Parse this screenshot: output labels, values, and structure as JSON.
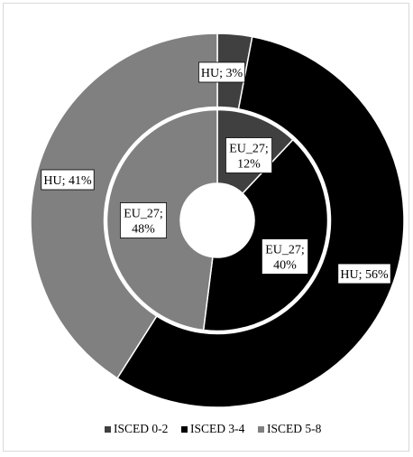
{
  "chart_data": {
    "type": "pie",
    "subtype": "doughnut",
    "categories": [
      "ISCED 0-2",
      "ISCED 3-4",
      "ISCED 5-8"
    ],
    "colors": [
      "#404040",
      "#000000",
      "#808080"
    ],
    "series": [
      {
        "name": "HU",
        "values": [
          3,
          56,
          41
        ],
        "ring": "outer"
      },
      {
        "name": "EU_27",
        "values": [
          12,
          40,
          48
        ],
        "ring": "inner"
      }
    ],
    "data_labels": {
      "outer": [
        "HU; 3%",
        "HU; 56%",
        "HU; 41%"
      ],
      "inner": [
        [
          "EU_27;",
          "12%"
        ],
        [
          "EU_27;",
          "40%"
        ],
        [
          "EU_27;",
          "48%"
        ]
      ]
    },
    "legend": {
      "position": "bottom",
      "items": [
        "ISCED 0-2",
        "ISCED 3-4",
        "ISCED 5-8"
      ]
    }
  }
}
